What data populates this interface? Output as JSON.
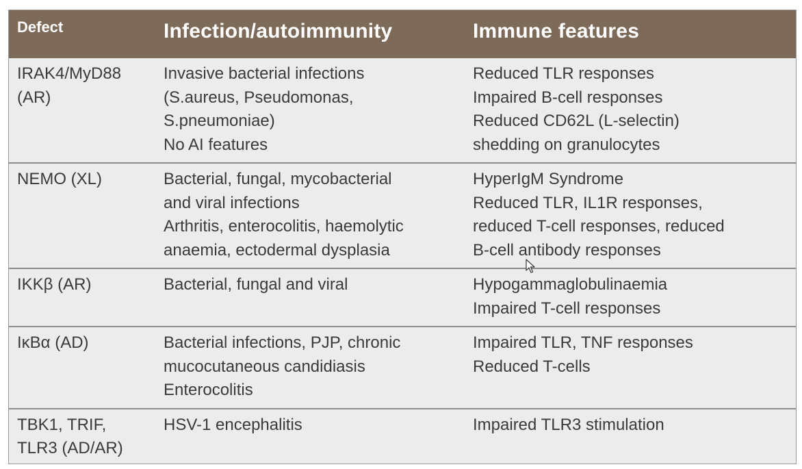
{
  "table": {
    "headers": [
      "Defect",
      "Infection/autoimmunity",
      "Immune features"
    ],
    "rows": [
      {
        "defect": "IRAK4/MyD88\n(AR)",
        "infection": "Invasive bacterial infections\n(S.aureus, Pseudomonas,\nS.pneumoniae)\nNo AI features",
        "immune": "Reduced TLR responses\nImpaired B-cell responses\nReduced CD62L (L-selectin)\nshedding on granulocytes"
      },
      {
        "defect": "NEMO (XL)",
        "infection": "Bacterial, fungal, mycobacterial\nand viral infections\nArthritis, enterocolitis, haemolytic\nanaemia, ectodermal dysplasia",
        "immune": "HyperIgM Syndrome\nReduced TLR, IL1R responses,\nreduced T-cell responses, reduced\nB-cell antibody responses"
      },
      {
        "defect": "IKKβ (AR)",
        "infection": "Bacterial, fungal and viral",
        "immune": "Hypogammaglobulinaemia\nImpaired T-cell responses"
      },
      {
        "defect": "IκBα (AD)",
        "infection": "Bacterial infections, PJP, chronic\nmucocutaneous candidiasis\nEnterocolitis",
        "immune": "Impaired TLR, TNF responses\nReduced T-cells"
      },
      {
        "defect": "TBK1, TRIF,\nTLR3 (AD/AR)",
        "infection": "HSV-1 encephalitis",
        "immune": "Impaired TLR3 stimulation"
      }
    ]
  },
  "colors": {
    "header_bg": "#7d6a58",
    "body_bg": "#ececec",
    "text": "#3a3a3a"
  },
  "icons": {
    "cursor": "mouse-pointer-icon"
  }
}
